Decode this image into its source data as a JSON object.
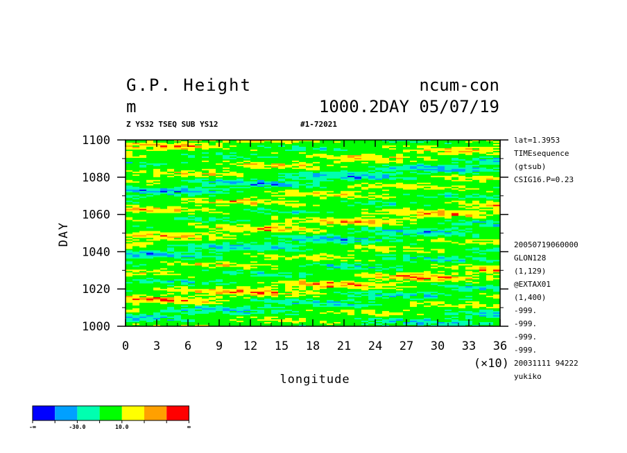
{
  "header": {
    "title_left": "G.P. Height",
    "title_right": "ncum-con",
    "units": "m",
    "subtitle_right": "1000.2DAY 05/07/19",
    "info_left": "Z YS32 TSEQ SUB YS12",
    "info_right": "#1-72021"
  },
  "side_info": {
    "top": [
      "lat=1.3953",
      "TIMEsequence",
      "(gtsub)",
      "CSIG16.P=0.23"
    ],
    "bottom": [
      "20050719060000",
      "GLON128",
      "(1,129)",
      "@EXTAX01",
      "(1,400)",
      "-999.",
      "-999.",
      "-999.",
      "-999.",
      "20031111  94222",
      "yukiko"
    ]
  },
  "colorbar": {
    "colors": [
      "#0000ff",
      "#00a0ff",
      "#00ffb0",
      "#00ff00",
      "#ffff00",
      "#ffa000",
      "#ff0000"
    ],
    "labels": [
      "-∞",
      "-30.0",
      "10.0",
      "∞"
    ]
  },
  "chart_data": {
    "type": "heatmap",
    "title": "G.P. Height",
    "xlabel": "longitude",
    "ylabel": "DAY",
    "x_multiplier_label": "(×10)",
    "xlim": [
      0,
      36
    ],
    "ylim": [
      1000,
      1100
    ],
    "xticks": [
      0,
      3,
      6,
      9,
      12,
      15,
      18,
      21,
      24,
      27,
      30,
      33,
      36
    ],
    "yticks": [
      1000,
      1020,
      1040,
      1060,
      1080,
      1100
    ],
    "color_levels": [
      "-∞",
      "-30.0",
      "10.0",
      "∞"
    ]
  }
}
